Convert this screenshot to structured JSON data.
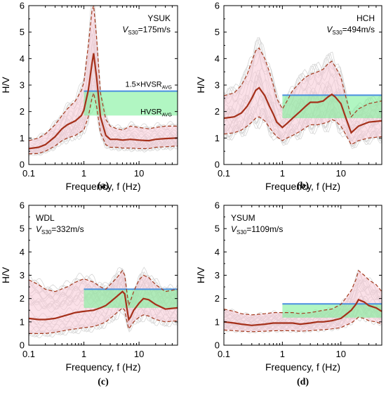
{
  "chart_data": [
    {
      "type": "line",
      "panel_label": "(a)",
      "site": "YSUK",
      "vs30_label": "V",
      "vs30_sub": "S30",
      "vs30_value": "=175m/s",
      "xlabel": "Frequency, f (Hz)",
      "ylabel": "H/V",
      "xscale": "log",
      "xlim": [
        0.1,
        50
      ],
      "ylim": [
        0,
        6
      ],
      "x_ticks": [
        "0.1",
        "1",
        "10"
      ],
      "y_ticks": [
        "0",
        "1",
        "2",
        "3",
        "4",
        "5",
        "6"
      ],
      "annotation_upper": "1.5×HVSR",
      "annotation_upper_sub": "AVG",
      "annotation_lower": "HVSR",
      "annotation_lower_sub": "AVG",
      "hvsr_avg": 1.85,
      "threshold_15x": 2.77,
      "band_x": [
        1.0,
        50
      ],
      "series": [
        {
          "role": "mean",
          "x": [
            0.1,
            0.15,
            0.2,
            0.3,
            0.4,
            0.5,
            0.7,
            0.9,
            1.0,
            1.2,
            1.4,
            1.5,
            1.7,
            2.0,
            2.5,
            3.0,
            4.0,
            5.0,
            7.0,
            10,
            15,
            20,
            30,
            50
          ],
          "values": [
            0.6,
            0.65,
            0.75,
            1.05,
            1.35,
            1.5,
            1.65,
            1.85,
            2.05,
            2.8,
            3.8,
            4.2,
            3.3,
            1.8,
            1.1,
            0.95,
            0.95,
            0.92,
            0.95,
            0.92,
            0.9,
            0.95,
            0.98,
            1.0
          ]
        },
        {
          "role": "upper",
          "x": [
            0.1,
            0.15,
            0.2,
            0.3,
            0.4,
            0.5,
            0.7,
            0.9,
            1.0,
            1.2,
            1.4,
            1.5,
            1.7,
            2.0,
            2.5,
            3.0,
            4.0,
            5.0,
            7.0,
            10,
            15,
            20,
            30,
            50
          ],
          "values": [
            0.9,
            1.0,
            1.15,
            1.5,
            1.85,
            2.1,
            2.4,
            2.8,
            3.1,
            4.5,
            5.8,
            6.0,
            4.8,
            2.7,
            1.7,
            1.45,
            1.35,
            1.3,
            1.45,
            1.4,
            1.35,
            1.4,
            1.45,
            1.45
          ]
        },
        {
          "role": "lower",
          "x": [
            0.1,
            0.15,
            0.2,
            0.3,
            0.4,
            0.5,
            0.7,
            0.9,
            1.0,
            1.2,
            1.4,
            1.5,
            1.7,
            2.0,
            2.5,
            3.0,
            4.0,
            5.0,
            7.0,
            10,
            15,
            20,
            30,
            50
          ],
          "values": [
            0.4,
            0.42,
            0.5,
            0.7,
            0.9,
            1.0,
            1.1,
            1.25,
            1.3,
            1.8,
            2.5,
            2.7,
            2.2,
            1.2,
            0.75,
            0.65,
            0.65,
            0.62,
            0.62,
            0.6,
            0.6,
            0.65,
            0.67,
            0.7
          ]
        }
      ]
    },
    {
      "type": "line",
      "panel_label": "(b)",
      "site": "HCH",
      "vs30_label": "V",
      "vs30_sub": "S30",
      "vs30_value": "=494m/s",
      "xlabel": "Frequency, f (Hz)",
      "ylabel": "H/V",
      "xscale": "log",
      "xlim": [
        0.1,
        50
      ],
      "ylim": [
        0,
        6
      ],
      "x_ticks": [
        "0.1",
        "1",
        "10"
      ],
      "y_ticks": [
        "0",
        "1",
        "2",
        "3",
        "4",
        "5",
        "6"
      ],
      "hvsr_avg": 1.75,
      "threshold_15x": 2.62,
      "band_x": [
        1.0,
        50
      ],
      "series": [
        {
          "role": "mean",
          "x": [
            0.1,
            0.15,
            0.2,
            0.25,
            0.3,
            0.35,
            0.4,
            0.5,
            0.6,
            0.7,
            0.8,
            1.0,
            1.2,
            1.5,
            2.0,
            2.5,
            3.0,
            4.0,
            5.0,
            6.0,
            7.0,
            8.0,
            10,
            12,
            15,
            20,
            30,
            50
          ],
          "values": [
            1.75,
            1.8,
            1.95,
            2.2,
            2.5,
            2.8,
            2.9,
            2.6,
            2.2,
            1.9,
            1.6,
            1.4,
            1.55,
            1.75,
            2.0,
            2.2,
            2.35,
            2.35,
            2.4,
            2.55,
            2.65,
            2.55,
            2.3,
            1.8,
            1.2,
            1.45,
            1.6,
            1.65
          ]
        },
        {
          "role": "upper",
          "x": [
            0.1,
            0.15,
            0.2,
            0.25,
            0.3,
            0.35,
            0.4,
            0.5,
            0.6,
            0.7,
            0.8,
            1.0,
            1.2,
            1.5,
            2.0,
            2.5,
            3.0,
            4.0,
            5.0,
            6.0,
            7.0,
            8.0,
            10,
            12,
            15,
            20,
            30,
            50
          ],
          "values": [
            2.6,
            2.7,
            3.0,
            3.4,
            3.9,
            4.3,
            4.4,
            4.0,
            3.5,
            3.0,
            2.5,
            2.1,
            2.4,
            2.8,
            3.1,
            3.3,
            3.4,
            3.5,
            3.6,
            3.8,
            3.9,
            3.7,
            3.3,
            2.6,
            1.8,
            2.1,
            2.3,
            2.4
          ]
        },
        {
          "role": "lower",
          "x": [
            0.1,
            0.15,
            0.2,
            0.25,
            0.3,
            0.35,
            0.4,
            0.5,
            0.6,
            0.7,
            0.8,
            1.0,
            1.2,
            1.5,
            2.0,
            2.5,
            3.0,
            4.0,
            5.0,
            6.0,
            7.0,
            8.0,
            10,
            12,
            15,
            20,
            30,
            50
          ],
          "values": [
            1.15,
            1.2,
            1.3,
            1.45,
            1.6,
            1.75,
            1.8,
            1.65,
            1.4,
            1.2,
            1.05,
            0.9,
            1.0,
            1.1,
            1.25,
            1.4,
            1.5,
            1.5,
            1.55,
            1.6,
            1.7,
            1.65,
            1.45,
            1.15,
            0.75,
            0.9,
            1.0,
            1.05
          ]
        }
      ]
    },
    {
      "type": "line",
      "panel_label": "(c)",
      "site": "WDL",
      "vs30_label": "V",
      "vs30_sub": "S30",
      "vs30_value": "=332m/s",
      "xlabel": "Frequency, f (Hz)",
      "ylabel": "H/V",
      "xscale": "log",
      "xlim": [
        0.1,
        50
      ],
      "ylim": [
        0,
        6
      ],
      "x_ticks": [
        "0.1",
        "1",
        "10"
      ],
      "y_ticks": [
        "0",
        "1",
        "2",
        "3",
        "4",
        "5",
        "6"
      ],
      "hvsr_avg": 1.6,
      "threshold_15x": 2.4,
      "band_x": [
        1.0,
        50
      ],
      "series": [
        {
          "role": "mean",
          "x": [
            0.1,
            0.15,
            0.2,
            0.3,
            0.5,
            0.7,
            1.0,
            1.5,
            2.0,
            2.5,
            3.0,
            4.0,
            5.0,
            5.5,
            6.0,
            6.5,
            7.0,
            8.0,
            10,
            12,
            15,
            20,
            30,
            50
          ],
          "values": [
            1.15,
            1.1,
            1.1,
            1.15,
            1.3,
            1.4,
            1.45,
            1.5,
            1.6,
            1.7,
            1.85,
            2.1,
            2.3,
            2.2,
            1.6,
            1.1,
            1.2,
            1.5,
            1.8,
            2.0,
            1.95,
            1.75,
            1.55,
            1.6
          ]
        },
        {
          "role": "upper",
          "x": [
            0.1,
            0.15,
            0.2,
            0.3,
            0.5,
            0.7,
            1.0,
            1.5,
            2.0,
            2.5,
            3.0,
            4.0,
            5.0,
            5.5,
            6.0,
            6.5,
            7.0,
            8.0,
            10,
            12,
            15,
            20,
            30,
            50
          ],
          "values": [
            2.8,
            2.6,
            2.4,
            2.3,
            2.5,
            2.7,
            2.85,
            2.7,
            2.5,
            2.4,
            2.6,
            2.9,
            3.2,
            3.0,
            2.3,
            1.7,
            1.9,
            2.3,
            2.8,
            3.0,
            2.9,
            2.6,
            2.3,
            2.4
          ]
        },
        {
          "role": "lower",
          "x": [
            0.1,
            0.15,
            0.2,
            0.3,
            0.5,
            0.7,
            1.0,
            1.5,
            2.0,
            2.5,
            3.0,
            4.0,
            5.0,
            5.5,
            6.0,
            6.5,
            7.0,
            8.0,
            10,
            12,
            15,
            20,
            30,
            50
          ],
          "values": [
            0.5,
            0.5,
            0.5,
            0.55,
            0.65,
            0.7,
            0.75,
            0.8,
            0.9,
            1.0,
            1.15,
            1.4,
            1.6,
            1.5,
            1.05,
            0.7,
            0.8,
            1.0,
            1.2,
            1.3,
            1.25,
            1.1,
            1.0,
            1.05
          ]
        }
      ]
    },
    {
      "type": "line",
      "panel_label": "(d)",
      "site": "YSUM",
      "vs30_label": "V",
      "vs30_sub": "S30",
      "vs30_value": "=1109m/s",
      "xlabel": "Frequency, f (Hz)",
      "ylabel": "H/V",
      "xscale": "log",
      "xlim": [
        0.1,
        50
      ],
      "ylim": [
        0,
        6
      ],
      "x_ticks": [
        "0.1",
        "1",
        "10"
      ],
      "y_ticks": [
        "0",
        "1",
        "2",
        "3",
        "4",
        "5",
        "6"
      ],
      "hvsr_avg": 1.18,
      "threshold_15x": 1.77,
      "band_x": [
        1.0,
        50
      ],
      "series": [
        {
          "role": "mean",
          "x": [
            0.1,
            0.15,
            0.2,
            0.3,
            0.5,
            0.7,
            1.0,
            1.5,
            2.0,
            3.0,
            4.0,
            5.0,
            7.0,
            10,
            12,
            15,
            18,
            20,
            25,
            30,
            40,
            50
          ],
          "values": [
            1.0,
            0.95,
            0.9,
            0.85,
            0.9,
            0.95,
            0.95,
            0.95,
            0.9,
            0.95,
            1.0,
            1.0,
            1.05,
            1.15,
            1.3,
            1.5,
            1.75,
            1.95,
            1.85,
            1.7,
            1.6,
            1.45
          ]
        },
        {
          "role": "upper",
          "x": [
            0.1,
            0.15,
            0.2,
            0.3,
            0.5,
            0.7,
            1.0,
            1.5,
            2.0,
            3.0,
            4.0,
            5.0,
            7.0,
            10,
            12,
            15,
            18,
            20,
            25,
            30,
            40,
            50
          ],
          "values": [
            1.55,
            1.45,
            1.35,
            1.3,
            1.35,
            1.4,
            1.4,
            1.4,
            1.35,
            1.4,
            1.45,
            1.5,
            1.55,
            1.75,
            2.0,
            2.35,
            2.8,
            3.2,
            3.0,
            2.8,
            2.6,
            2.3
          ]
        },
        {
          "role": "lower",
          "x": [
            0.1,
            0.15,
            0.2,
            0.3,
            0.5,
            0.7,
            1.0,
            1.5,
            2.0,
            3.0,
            4.0,
            5.0,
            7.0,
            10,
            12,
            15,
            18,
            20,
            25,
            30,
            40,
            50
          ],
          "values": [
            0.65,
            0.62,
            0.6,
            0.58,
            0.6,
            0.62,
            0.62,
            0.62,
            0.6,
            0.62,
            0.65,
            0.66,
            0.7,
            0.75,
            0.85,
            0.95,
            1.1,
            1.2,
            1.15,
            1.05,
            1.0,
            0.9
          ]
        }
      ]
    }
  ]
}
